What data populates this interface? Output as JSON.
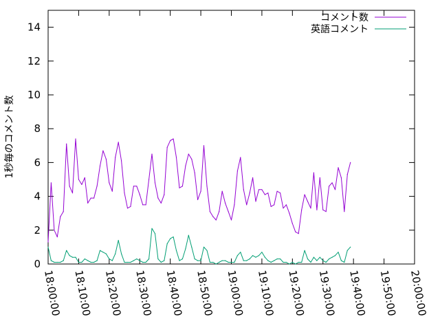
{
  "chart_data": {
    "type": "line",
    "title": "",
    "xlabel": "",
    "ylabel": "1秒毎のコメント数",
    "xlim": [
      "18:00:00",
      "20:00:00"
    ],
    "ylim": [
      0,
      15
    ],
    "x_ticks": [
      "18:00:00",
      "18:10:00",
      "18:20:00",
      "18:30:00",
      "18:40:00",
      "18:50:00",
      "19:00:00",
      "19:10:00",
      "19:20:00",
      "19:30:00",
      "19:40:00",
      "19:50:00",
      "20:00:00"
    ],
    "y_ticks": [
      "0",
      "2",
      "4",
      "6",
      "8",
      "10",
      "12",
      "14"
    ],
    "grid": false,
    "legend_position": "top-right",
    "x_interval_seconds": 60,
    "series": [
      {
        "name": "コメント数",
        "color": "#9400d3",
        "values": [
          1.3,
          4.8,
          2.0,
          1.6,
          2.8,
          3.1,
          7.1,
          4.6,
          4.2,
          7.4,
          5.0,
          4.7,
          5.1,
          3.6,
          3.9,
          3.9,
          4.6,
          5.8,
          6.7,
          6.2,
          4.8,
          4.3,
          6.3,
          7.2,
          6.1,
          4.2,
          3.3,
          3.4,
          4.6,
          4.6,
          4.1,
          3.5,
          3.5,
          5.0,
          6.5,
          4.8,
          3.9,
          3.6,
          4.1,
          6.9,
          7.3,
          7.4,
          6.3,
          4.5,
          4.6,
          5.8,
          6.5,
          6.2,
          5.4,
          3.8,
          4.3,
          7.0,
          4.6,
          3.1,
          2.8,
          2.6,
          3.1,
          4.3,
          3.6,
          3.1,
          2.6,
          3.5,
          5.5,
          6.3,
          4.4,
          3.5,
          4.2,
          5.1,
          3.7,
          4.4,
          4.4,
          4.1,
          4.2,
          3.4,
          3.5,
          4.3,
          4.2,
          3.3,
          3.5,
          3.0,
          2.4,
          1.9,
          1.8,
          3.2,
          4.1,
          3.7,
          3.3,
          5.4,
          3.2,
          5.1,
          3.2,
          3.1,
          4.6,
          4.8,
          4.4,
          5.7,
          5.1,
          3.1,
          5.3,
          6.0
        ]
      },
      {
        "name": "英語コメント",
        "color": "#009e73",
        "values": [
          1.0,
          0.2,
          0.1,
          0.1,
          0.1,
          0.2,
          0.8,
          0.5,
          0.4,
          0.4,
          0.1,
          0.1,
          0.3,
          0.2,
          0.1,
          0.1,
          0.2,
          0.8,
          0.7,
          0.6,
          0.3,
          0.2,
          0.6,
          1.4,
          0.6,
          0.1,
          0.1,
          0.1,
          0.2,
          0.3,
          0.2,
          0.1,
          0.1,
          0.3,
          2.1,
          1.8,
          0.3,
          0.1,
          0.2,
          1.2,
          1.5,
          1.6,
          0.8,
          0.2,
          0.3,
          0.9,
          1.7,
          1.0,
          0.3,
          0.2,
          0.2,
          1.0,
          0.8,
          0.1,
          0.1,
          0.0,
          0.1,
          0.2,
          0.2,
          0.1,
          0.1,
          0.1,
          0.5,
          0.7,
          0.2,
          0.2,
          0.3,
          0.5,
          0.4,
          0.5,
          0.7,
          0.4,
          0.2,
          0.1,
          0.2,
          0.3,
          0.3,
          0.1,
          0.1,
          0.0,
          0.1,
          0.0,
          0.1,
          0.1,
          0.8,
          0.3,
          0.1,
          0.4,
          0.2,
          0.4,
          0.2,
          0.1,
          0.3,
          0.4,
          0.5,
          0.7,
          0.2,
          0.1,
          0.8,
          1.0
        ]
      }
    ]
  }
}
